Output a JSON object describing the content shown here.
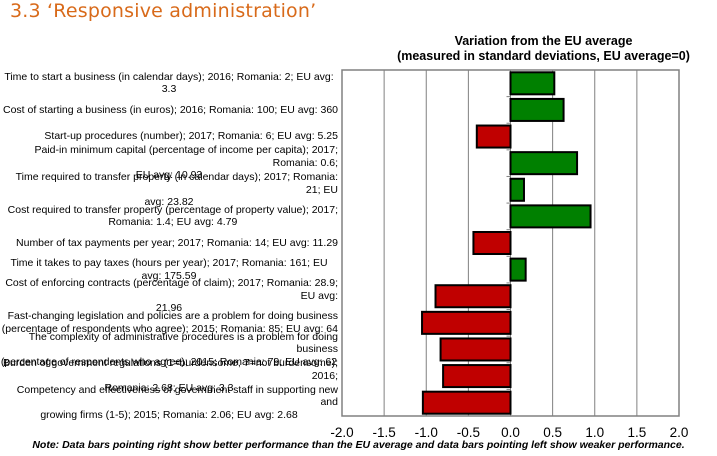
{
  "section_title": "3.3 ‘Responsive administration’",
  "note": "Note: Data bars pointing right show better performance than the EU average and data bars pointing left show weaker performance.",
  "colors": {
    "title": "#D86A1A",
    "positive": "#008000",
    "negative": "#C00000",
    "grid": "#808080"
  },
  "chart_data": {
    "type": "bar",
    "orientation": "horizontal",
    "title": "Variation from the EU average",
    "subtitle": "(measured in standard deviations, EU average=0)",
    "xlabel": "",
    "ylabel": "",
    "xlim": [
      -2.0,
      2.0
    ],
    "xticks": [
      "-2.0",
      "-1.5",
      "-1.0",
      "-0.5",
      "0.0",
      "0.5",
      "1.0",
      "1.5",
      "2.0"
    ],
    "grid": true,
    "legend": "none",
    "categories": [
      "Time to start a business (in calendar days); 2016; Romania: 2; EU avg: 3.3",
      "Cost of starting a business (in euros); 2016; Romania: 100; EU avg: 360",
      "Start-up procedures (number); 2017; Romania: 6; EU avg: 5.25",
      "Paid-in minimum capital (percentage of income per capita); 2017; Romania: 0.6; EU avg: 10.93",
      "Time required to transfer property (in calendar days); 2017; Romania: 21; EU avg: 23.82",
      "Cost required to transfer property (percentage of property value); 2017; Romania: 1.4; EU avg: 4.79",
      "Number of tax payments per year; 2017; Romania: 14; EU avg: 11.29",
      "Time it takes to pay taxes (hours per year); 2017; Romania: 161; EU avg: 175.59",
      "Cost of enforcing contracts (percentage of claim); 2017; Romania: 28.9; EU avg: 21.96",
      "Fast-changing legislation and policies are a problem for doing business (percentage of respondents who agree); 2015; Romania: 85; EU avg: 64",
      "The complexity of administrative procedures is a problem for doing business (percentage of respondents who agree); 2015; Romania: 79; EU avg: 62",
      "Burden of government regulations (1=burdensome, 7=not burdensome); 2016; Romania: 2.68; EU avg: 3.3",
      "Competency and effectiveness of government staff in supporting new and growing firms (1-5); 2015; Romania: 2.06; EU avg: 2.68"
    ],
    "label_lines": [
      [
        "Time to start a business (in calendar days); 2016; Romania: 2; EU avg: 3.3"
      ],
      [
        "Cost of starting a business (in euros); 2016; Romania: 100; EU avg: 360"
      ],
      [
        "Start-up procedures (number); 2017; Romania: 6; EU avg: 5.25"
      ],
      [
        "Paid-in minimum capital (percentage of income per capita); 2017; Romania: 0.6;",
        "EU avg: 10.93"
      ],
      [
        "Time required to transfer property (in calendar days); 2017; Romania: 21; EU",
        "avg: 23.82"
      ],
      [
        "Cost required to transfer property (percentage of property value); 2017;",
        "Romania: 1.4; EU avg: 4.79"
      ],
      [
        "Number of tax payments per year; 2017; Romania: 14; EU avg: 11.29"
      ],
      [
        "Time it takes to pay taxes (hours per year); 2017; Romania: 161; EU avg: 175.59"
      ],
      [
        "Cost of enforcing contracts (percentage of claim); 2017; Romania: 28.9; EU avg:",
        "21.96"
      ],
      [
        "Fast-changing legislation and policies are a problem for doing business",
        "(percentage of respondents who agree); 2015; Romania: 85; EU avg: 64"
      ],
      [
        "The complexity of administrative procedures is a problem for doing business",
        "(percentage of respondents who agree); 2015; Romania: 79; EU avg: 62"
      ],
      [
        "Burden of government regulations (1=burdensome, 7=not burdensome); 2016;",
        "Romania: 2.68; EU avg: 3.3"
      ],
      [
        "Competency and effectiveness of government staff in supporting new and",
        "growing firms (1-5); 2015; Romania: 2.06; EU avg: 2.68"
      ]
    ],
    "values": [
      0.52,
      0.63,
      -0.4,
      0.79,
      0.16,
      0.95,
      -0.44,
      0.18,
      -0.89,
      -1.05,
      -0.83,
      -0.8,
      -1.04
    ]
  }
}
